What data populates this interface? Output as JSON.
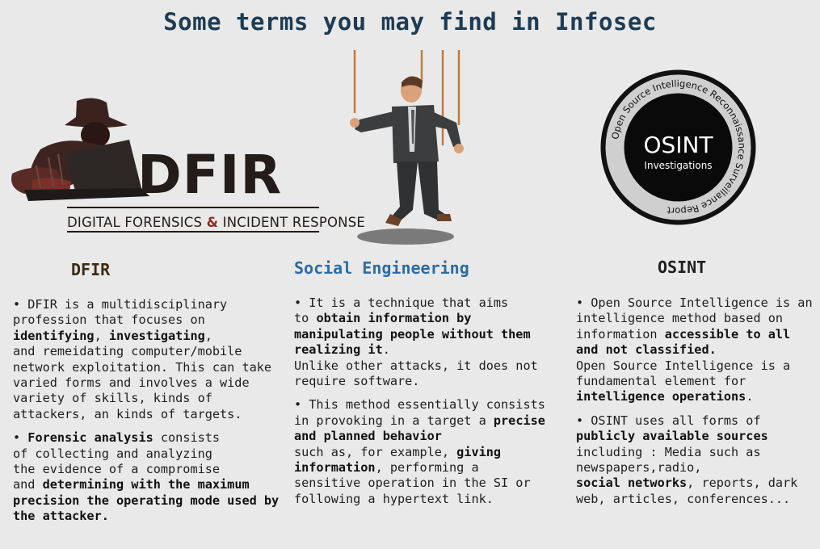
{
  "title": "Some terms you may find in Infosec",
  "dfir_logo": {
    "big": "DFIR",
    "sub_part1": "DIGITAL FORENSICS ",
    "sub_amp": "&",
    "sub_part2": " INCIDENT RESPONSE"
  },
  "osint_logo": {
    "big": "OSINT",
    "small": "Investigations",
    "ring": "Open Source Intelligence Reconnaissance Surveillance Report"
  },
  "columns": {
    "dfir": {
      "title": "DFIR",
      "p1": [
        "• DFIR is a multidisciplinary profession that focuses on ",
        "identifying",
        ", ",
        "investigating",
        ",\nand remeidating computer/mobile network exploitation. This can take varied forms and involves a wide variety of skills, kinds of attackers, an kinds of targets."
      ],
      "p2": [
        "• ",
        "Forensic analysis",
        " consists\nof collecting and analyzing\nthe evidence of a compromise\nand ",
        "determining with the maximum precision the operating mode used by the attacker."
      ]
    },
    "se": {
      "title": "Social Engineering",
      "p1": [
        "• It is a technique that aims\nto ",
        "obtain information by manipulating people without them realizing it",
        ".\nUnlike other attacks, it does not require software."
      ],
      "p2": [
        "• This method essentially consists in provoking in a target a ",
        "precise and planned behavior",
        "\nsuch as, for example, ",
        "giving information",
        ", performing a sensitive operation in the SI or following a hypertext link."
      ]
    },
    "osint": {
      "title": "OSINT",
      "p1": [
        "• Open Source Intelligence is an intelligence method based on information ",
        "accessible to all and not classified.",
        "\nOpen Source Intelligence is a fundamental element for\n",
        "intelligence operations",
        "."
      ],
      "p2": [
        "• OSINT uses all forms of\n",
        "publicly available sources",
        "\nincluding : Media such as newspapers,radio,\n",
        "social networks",
        ", reports, dark web, articles, conferences..."
      ]
    }
  },
  "colors": {
    "title": "#1d3b54",
    "se_title": "#2b6ca8",
    "dfir_title": "#3d2b14",
    "background": "#e9e9e9"
  }
}
